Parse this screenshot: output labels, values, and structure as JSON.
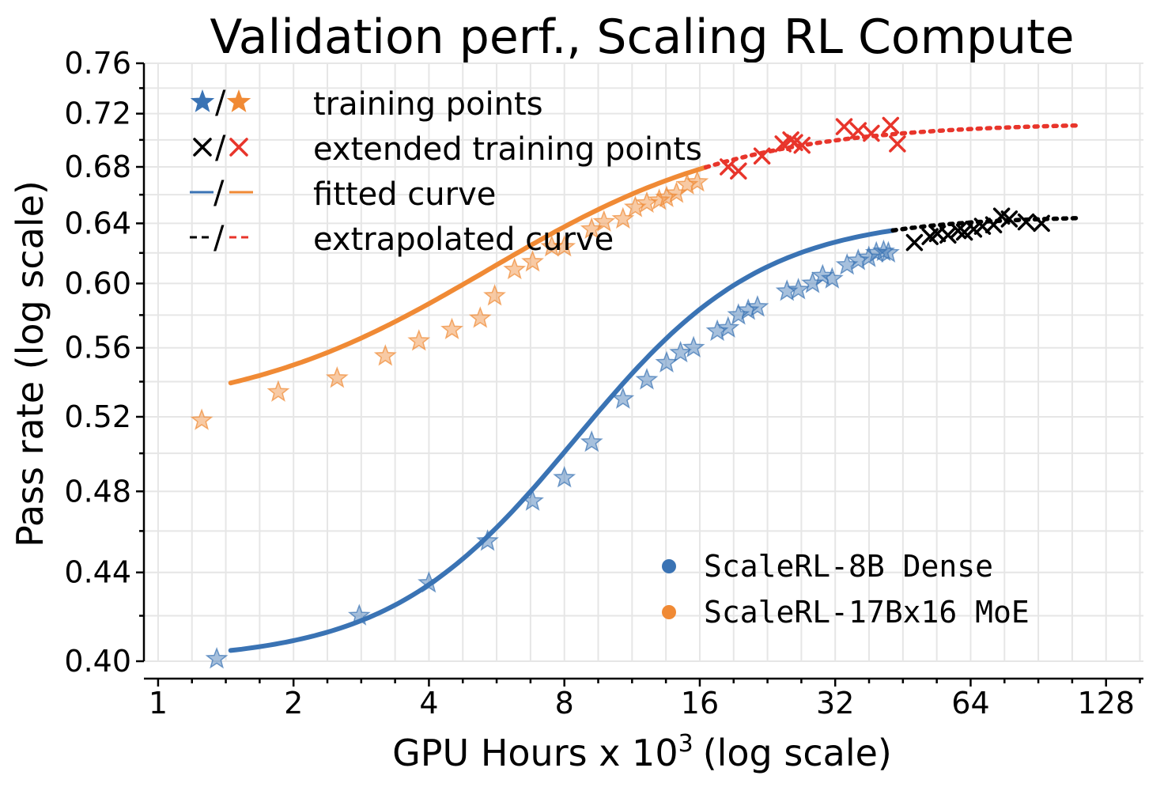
{
  "chart_data": {
    "type": "scatter",
    "title": "Validation perf., Scaling RL Compute",
    "xlabel": "GPU Hours x 10",
    "xlabel_superscript": "3",
    "xlabel_suffix": "(log scale)",
    "ylabel": "Pass rate (log scale)",
    "x_scale": "log2",
    "y_scale": "log",
    "xlim": [
      0.93,
      155
    ],
    "ylim": [
      0.4,
      0.76
    ],
    "x_ticks": [
      1,
      2,
      4,
      8,
      16,
      32,
      64,
      128
    ],
    "x_tick_labels": [
      "1",
      "2",
      "4",
      "8",
      "16",
      "32",
      "64",
      "128"
    ],
    "y_ticks": [
      0.4,
      0.44,
      0.48,
      0.52,
      0.56,
      0.6,
      0.64,
      0.68,
      0.72,
      0.76
    ],
    "y_tick_labels": [
      "0.40",
      "0.44",
      "0.48",
      "0.52",
      "0.56",
      "0.60",
      "0.64",
      "0.68",
      "0.72",
      "0.76"
    ],
    "grid": true,
    "legend_markers": {
      "position": "top-left",
      "entries": [
        {
          "symbol": "★/★",
          "label": "training points"
        },
        {
          "symbol": "×/×",
          "label": "extended training points"
        },
        {
          "symbol": "—/—",
          "label": "fitted curve"
        },
        {
          "symbol": "--/--",
          "label": "extrapolated curve"
        }
      ]
    },
    "legend_series": {
      "position": "bottom-right",
      "entries": [
        {
          "label": "ScaleRL-8B Dense",
          "color": "#3a73b4"
        },
        {
          "label": "ScaleRL-17Bx16 MoE",
          "color": "#f08a35"
        }
      ]
    },
    "series": [
      {
        "name": "ScaleRL-8B Dense",
        "color": "#3a73b4",
        "extended_color": "#000000",
        "fit": {
          "A": 0.645,
          "base": 0.4,
          "Cmid": 9.5,
          "B": 2.1
        },
        "fit_range": [
          1.45,
          43
        ],
        "extrap_range": [
          43,
          110
        ],
        "training_points": [
          [
            1.35,
            0.401
          ],
          [
            2.8,
            0.42
          ],
          [
            4.0,
            0.435
          ],
          [
            5.4,
            0.455
          ],
          [
            6.8,
            0.475
          ],
          [
            8.0,
            0.487
          ],
          [
            9.2,
            0.506
          ],
          [
            10.8,
            0.53
          ],
          [
            12.2,
            0.541
          ],
          [
            13.5,
            0.551
          ],
          [
            14.5,
            0.557
          ],
          [
            15.5,
            0.56
          ],
          [
            17.5,
            0.57
          ],
          [
            18.5,
            0.572
          ],
          [
            19.5,
            0.58
          ],
          [
            20.5,
            0.583
          ],
          [
            21.5,
            0.585
          ],
          [
            25.0,
            0.595
          ],
          [
            26.5,
            0.596
          ],
          [
            28.5,
            0.6
          ],
          [
            30.0,
            0.605
          ],
          [
            31.5,
            0.603
          ],
          [
            34.0,
            0.612
          ],
          [
            36.0,
            0.615
          ],
          [
            38.0,
            0.617
          ],
          [
            39.5,
            0.62
          ],
          [
            41.0,
            0.621
          ],
          [
            42.0,
            0.62
          ]
        ],
        "extended_points": [
          [
            48,
            0.627
          ],
          [
            52,
            0.631
          ],
          [
            54,
            0.633
          ],
          [
            57,
            0.632
          ],
          [
            60,
            0.635
          ],
          [
            62,
            0.634
          ],
          [
            65,
            0.636
          ],
          [
            68,
            0.638
          ],
          [
            72,
            0.639
          ],
          [
            75,
            0.645
          ],
          [
            78,
            0.643
          ],
          [
            85,
            0.641
          ],
          [
            92,
            0.64
          ]
        ]
      },
      {
        "name": "ScaleRL-17Bx16 MoE",
        "color": "#f08a35",
        "extended_color": "#e8352b",
        "fit": {
          "A": 0.713,
          "base": 0.52,
          "Cmid": 6.0,
          "B": 1.55
        },
        "fit_range": [
          1.45,
          16.5
        ],
        "extrap_range": [
          16.5,
          110
        ],
        "training_points": [
          [
            1.25,
            0.518
          ],
          [
            1.85,
            0.534
          ],
          [
            2.5,
            0.542
          ],
          [
            3.2,
            0.555
          ],
          [
            3.8,
            0.564
          ],
          [
            4.5,
            0.571
          ],
          [
            5.2,
            0.578
          ],
          [
            5.6,
            0.592
          ],
          [
            6.2,
            0.609
          ],
          [
            6.8,
            0.614
          ],
          [
            7.5,
            0.624
          ],
          [
            8.0,
            0.624
          ],
          [
            9.2,
            0.636
          ],
          [
            9.8,
            0.641
          ],
          [
            10.8,
            0.643
          ],
          [
            11.5,
            0.651
          ],
          [
            12.2,
            0.654
          ],
          [
            13.0,
            0.656
          ],
          [
            13.5,
            0.658
          ],
          [
            14.2,
            0.661
          ],
          [
            15.0,
            0.667
          ],
          [
            15.8,
            0.669
          ]
        ],
        "extended_points": [
          [
            18.5,
            0.68
          ],
          [
            19.5,
            0.677
          ],
          [
            22.0,
            0.688
          ],
          [
            24.5,
            0.697
          ],
          [
            25.5,
            0.7
          ],
          [
            26.0,
            0.698
          ],
          [
            27.0,
            0.696
          ],
          [
            33.5,
            0.71
          ],
          [
            36.0,
            0.707
          ],
          [
            38.5,
            0.705
          ],
          [
            42.5,
            0.711
          ],
          [
            44.0,
            0.697
          ]
        ]
      }
    ]
  }
}
